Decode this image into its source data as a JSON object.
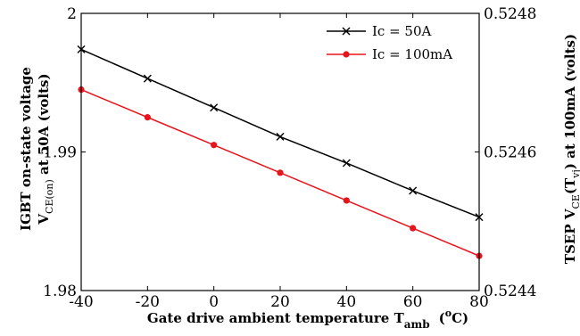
{
  "chart_data": {
    "type": "line",
    "x": [
      -40,
      -20,
      0,
      20,
      40,
      60,
      80
    ],
    "xlim": [
      -40,
      80
    ],
    "xticks": [
      "-40",
      "-20",
      "0",
      "20",
      "40",
      "60",
      "80"
    ],
    "xlabel": "Gate drive ambient temperature T",
    "xlabel_sub": "amb",
    "xlabel_unit_open": "(",
    "xlabel_unit_sup": "o",
    "xlabel_unit_close": "C)",
    "ylim_left": [
      1.98,
      2.0
    ],
    "yticks_left": [
      "1.98",
      "1.99",
      "2"
    ],
    "ylabel_left_line1": "IGBT on-state voltage",
    "ylabel_left_line2_main": "V",
    "ylabel_left_line2_sub": "CE(on)",
    "ylabel_left_line2_rest": " at 50A (volts)",
    "ylim_right": [
      0.5244,
      0.5248
    ],
    "yticks_right": [
      "0.5244",
      "0.5246",
      "0.5248"
    ],
    "ylabel_right_main": "TSEP V",
    "ylabel_right_sub1": "CE",
    "ylabel_right_mid": "(T",
    "ylabel_right_sub2": "vj",
    "ylabel_right_rest": ") at 100mA (volts)",
    "grid": false,
    "legend_position": "top-right",
    "series": [
      {
        "name": "Ic = 50A",
        "axis": "left",
        "color": "#000000",
        "marker": "x",
        "values": [
          1.9974,
          1.9953,
          1.9932,
          1.9911,
          1.9892,
          1.9872,
          1.9853
        ]
      },
      {
        "name": "Ic = 100mA",
        "axis": "right",
        "color": "#e8141c",
        "marker": "circle",
        "values": [
          0.52469,
          0.52465,
          0.52461,
          0.52457,
          0.52453,
          0.52449,
          0.52445
        ]
      }
    ]
  }
}
